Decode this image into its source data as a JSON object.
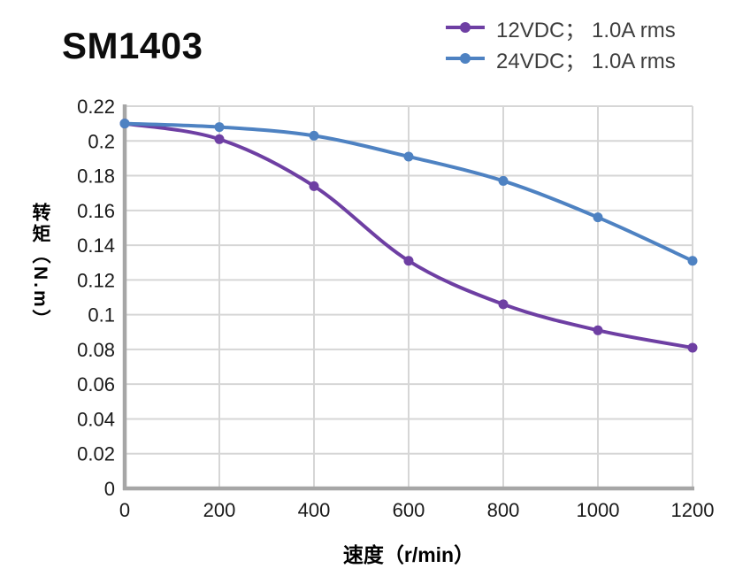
{
  "header": {
    "title": "SM1403"
  },
  "chart_data": {
    "type": "line",
    "title": "SM1403",
    "xlabel": "速度（r/min）",
    "ylabel": "转矩（N.m）",
    "x": [
      0,
      200,
      400,
      600,
      800,
      1000,
      1200
    ],
    "series": [
      {
        "name": "12VDC； 1.0A rms",
        "color": "#6E3FA3",
        "values": [
          0.21,
          0.201,
          0.174,
          0.131,
          0.106,
          0.091,
          0.081
        ]
      },
      {
        "name": "24VDC； 1.0A rms",
        "color": "#4E82C2",
        "values": [
          0.21,
          0.208,
          0.203,
          0.191,
          0.177,
          0.156,
          0.131
        ]
      }
    ],
    "xlim": [
      0,
      1200
    ],
    "ylim": [
      0,
      0.22
    ],
    "x_ticks": [
      0,
      200,
      400,
      600,
      800,
      1000,
      1200
    ],
    "y_ticks": [
      0,
      0.02,
      0.04,
      0.06,
      0.08,
      0.1,
      0.12,
      0.14,
      0.16,
      0.18,
      0.2,
      0.22
    ],
    "grid": true,
    "smooth": true,
    "marker": "circle",
    "legend_position": "top-right"
  },
  "styles": {
    "grid_color": "#D6D6D6",
    "axis_color": "#A6A6A6",
    "tick_color": "#1A1A1A",
    "title_color": "#0D0D0D",
    "legend_text_color": "#3D3D3D"
  }
}
